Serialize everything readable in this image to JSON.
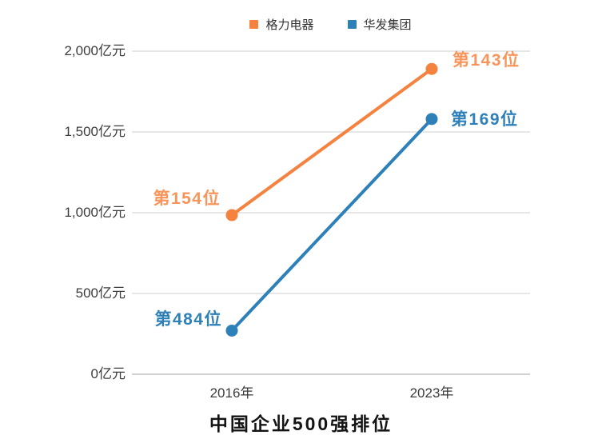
{
  "chart_data": {
    "type": "line",
    "title": "中国企业500强排位",
    "categories": [
      "2016年",
      "2023年"
    ],
    "unit": "亿元",
    "ylim": [
      0,
      2000
    ],
    "yticks": [
      0,
      500,
      1000,
      1500,
      2000
    ],
    "ytick_labels": [
      "0亿元",
      "500亿元",
      "1,000亿元",
      "1,500亿元",
      "2,000亿元"
    ],
    "grid": true,
    "legend_position": "top",
    "colors": {
      "grid": "#e7e7e7",
      "axis": "#d2d2d2",
      "tick_text": "#3c3c3c"
    },
    "series": [
      {
        "name": "格力电器",
        "color": "#F5823F",
        "label_color": "#F9955A",
        "values": [
          985,
          1890
        ],
        "point_labels": [
          "第154位",
          "第143位"
        ],
        "label_placements": [
          {
            "dx": -14,
            "dy": -20,
            "anchor": "end"
          },
          {
            "dx": 26,
            "dy": -10,
            "anchor": "start"
          }
        ]
      },
      {
        "name": "华发集团",
        "color": "#2E80B9",
        "label_color": "#2E80B9",
        "values": [
          270,
          1580
        ],
        "point_labels": [
          "第484位",
          "第169位"
        ],
        "label_placements": [
          {
            "dx": -12,
            "dy": -13,
            "anchor": "end"
          },
          {
            "dx": 24,
            "dy": 1,
            "anchor": "start"
          }
        ]
      }
    ]
  }
}
